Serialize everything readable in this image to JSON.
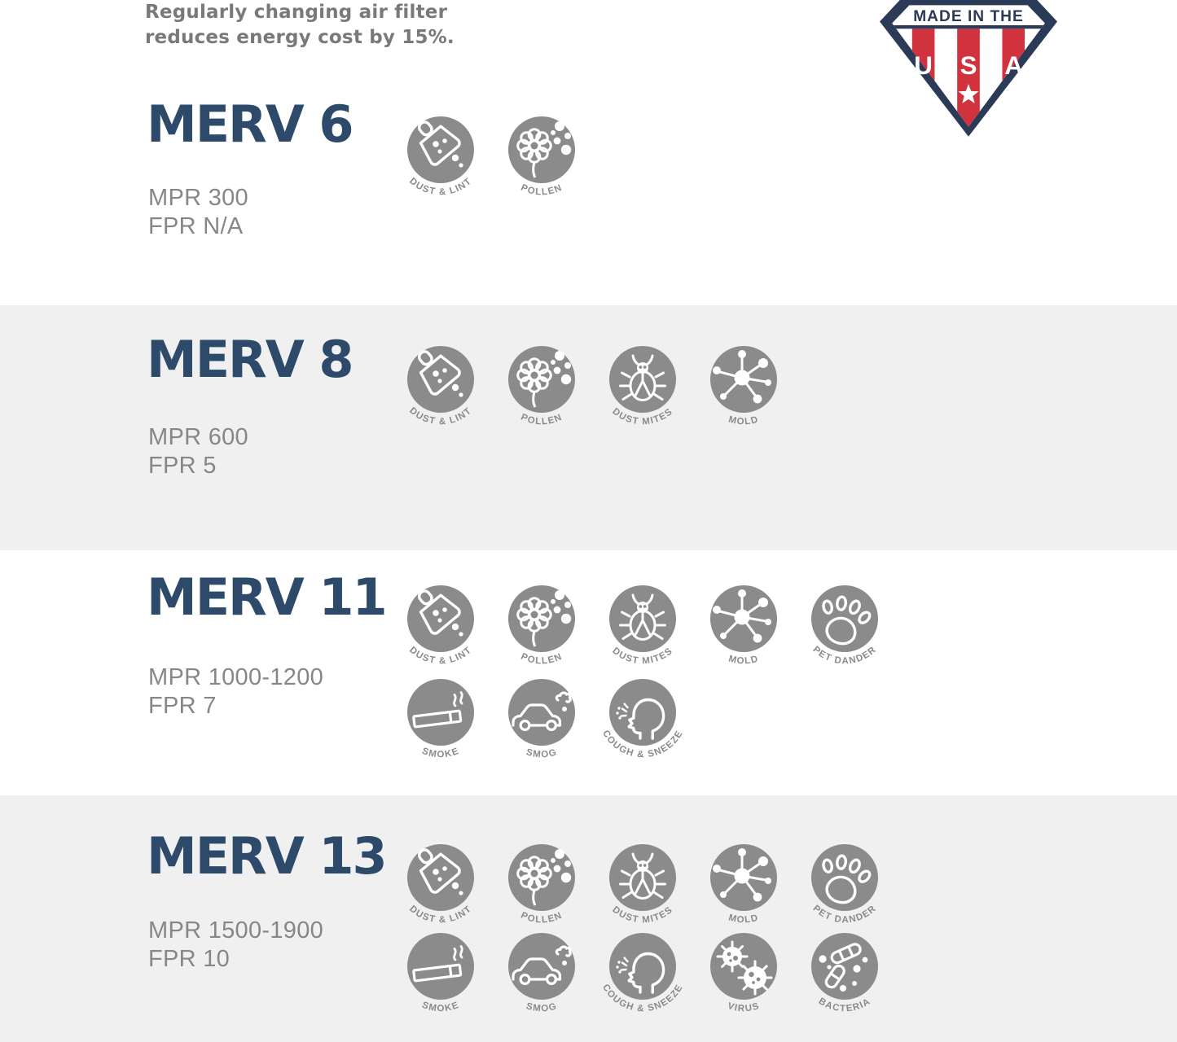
{
  "tagline": {
    "line1": "Regularly changing air filter",
    "line2": "reduces energy cost by 15%."
  },
  "badge": {
    "top_text": "MADE IN THE",
    "letters": [
      "U",
      "S",
      "A"
    ],
    "star_icon": "star"
  },
  "colors": {
    "title_navy": "#2d4a6a",
    "badge_navy": "#2b3a57",
    "badge_red": "#d0323e",
    "icon_gray": "#8b8b8b",
    "icon_label_gray": "#8a8a8a",
    "spec_gray": "#85878a",
    "tagline_gray": "#77797c",
    "row_alt_bg": "#f0f0f0",
    "white": "#ffffff"
  },
  "rows": [
    {
      "title": "MERV 6",
      "mpr": "MPR 300",
      "fpr": "FPR N/A",
      "icons": [
        {
          "name": "dust-lint-icon",
          "label": "DUST & LINT"
        },
        {
          "name": "pollen-icon",
          "label": "POLLEN"
        }
      ]
    },
    {
      "title": "MERV 8",
      "mpr": "MPR 600",
      "fpr": "FPR 5",
      "icons": [
        {
          "name": "dust-lint-icon",
          "label": "DUST & LINT"
        },
        {
          "name": "pollen-icon",
          "label": "POLLEN"
        },
        {
          "name": "dust-mites-icon",
          "label": "DUST MITES"
        },
        {
          "name": "mold-icon",
          "label": "MOLD"
        }
      ]
    },
    {
      "title": "MERV 11",
      "mpr": "MPR 1000-1200",
      "fpr": "FPR 7",
      "icons": [
        {
          "name": "dust-lint-icon",
          "label": "DUST & LINT"
        },
        {
          "name": "pollen-icon",
          "label": "POLLEN"
        },
        {
          "name": "dust-mites-icon",
          "label": "DUST MITES"
        },
        {
          "name": "mold-icon",
          "label": "MOLD"
        },
        {
          "name": "pet-dander-icon",
          "label": "PET DANDER"
        }
      ],
      "icons2": [
        {
          "name": "smoke-icon",
          "label": "SMOKE"
        },
        {
          "name": "smog-icon",
          "label": "SMOG"
        },
        {
          "name": "cough-sneeze-icon",
          "label": "COUGH & SNEEZE"
        }
      ]
    },
    {
      "title": "MERV 13",
      "mpr": "MPR 1500-1900",
      "fpr": "FPR 10",
      "icons": [
        {
          "name": "dust-lint-icon",
          "label": "DUST & LINT"
        },
        {
          "name": "pollen-icon",
          "label": "POLLEN"
        },
        {
          "name": "dust-mites-icon",
          "label": "DUST MITES"
        },
        {
          "name": "mold-icon",
          "label": "MOLD"
        },
        {
          "name": "pet-dander-icon",
          "label": "PET DANDER"
        }
      ],
      "icons2": [
        {
          "name": "smoke-icon",
          "label": "SMOKE"
        },
        {
          "name": "smog-icon",
          "label": "SMOG"
        },
        {
          "name": "cough-sneeze-icon",
          "label": "COUGH & SNEEZE"
        },
        {
          "name": "virus-icon",
          "label": "VIRUS"
        },
        {
          "name": "bacteria-icon",
          "label": "BACTERIA"
        }
      ]
    }
  ]
}
